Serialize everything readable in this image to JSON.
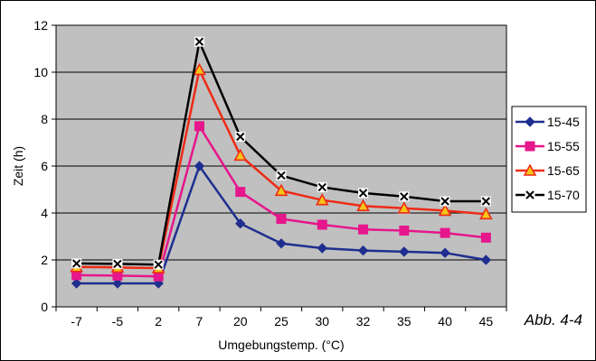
{
  "figure_caption": "Abb. 4-4",
  "chart_data": {
    "type": "line",
    "title": "",
    "xlabel": "Umgebungstemp. (°C)",
    "ylabel": "Zeit (h)",
    "categories": [
      "-7",
      "-5",
      "2",
      "7",
      "20",
      "25",
      "30",
      "32",
      "35",
      "40",
      "45"
    ],
    "ylim": [
      0,
      12
    ],
    "yticks": [
      "0",
      "2",
      "4",
      "6",
      "8",
      "10",
      "12"
    ],
    "grid": true,
    "legend_position": "right",
    "plot_background": "#c0c0c0",
    "series": [
      {
        "name": "15-45",
        "color": "#1f2f8f",
        "marker": "diamond",
        "values": [
          1.0,
          1.0,
          1.0,
          6.0,
          3.55,
          2.7,
          2.5,
          2.4,
          2.35,
          2.3,
          2.0
        ]
      },
      {
        "name": "15-55",
        "color": "#e6168c",
        "marker": "square",
        "values": [
          1.35,
          1.33,
          1.3,
          7.7,
          4.9,
          3.75,
          3.5,
          3.3,
          3.25,
          3.15,
          2.95
        ]
      },
      {
        "name": "15-65",
        "color": "#ee2b16",
        "marker": "triangle",
        "values": [
          1.7,
          1.68,
          1.65,
          10.1,
          6.45,
          4.95,
          4.55,
          4.3,
          4.2,
          4.1,
          3.95
        ]
      },
      {
        "name": "15-70",
        "color": "#000000",
        "marker": "x",
        "values": [
          1.85,
          1.83,
          1.8,
          11.3,
          7.25,
          5.6,
          5.1,
          4.85,
          4.7,
          4.5,
          4.5
        ]
      }
    ]
  }
}
